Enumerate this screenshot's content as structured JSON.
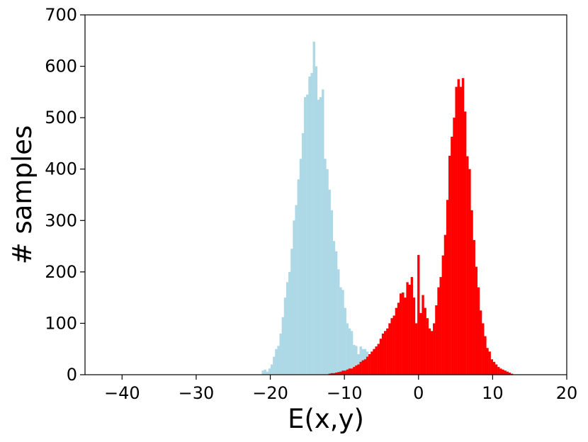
{
  "chart_data": {
    "type": "bar",
    "title": "",
    "xlabel": "E(x,y)",
    "ylabel": "# samples",
    "xlim": [
      -45,
      20
    ],
    "ylim": [
      0,
      700
    ],
    "x_ticks": [
      -40,
      -30,
      -20,
      -10,
      0,
      10,
      20
    ],
    "x_tick_labels": [
      "−40",
      "−30",
      "−20",
      "−10",
      "0",
      "10",
      "20"
    ],
    "y_ticks": [
      0,
      100,
      200,
      300,
      400,
      500,
      600,
      700
    ],
    "y_tick_labels": [
      "0",
      "100",
      "200",
      "300",
      "400",
      "500",
      "600",
      "700"
    ],
    "grid": false,
    "legend": "none",
    "bin_width": 0.32,
    "series": [
      {
        "color": "#add8e6",
        "x": [
          -21.0,
          -20.7,
          -20.4,
          -20.1,
          -19.8,
          -19.5,
          -19.2,
          -18.9,
          -18.6,
          -18.3,
          -18.0,
          -17.7,
          -17.4,
          -17.1,
          -16.8,
          -16.5,
          -16.2,
          -15.9,
          -15.6,
          -15.3,
          -15.0,
          -14.7,
          -14.4,
          -14.1,
          -13.8,
          -13.5,
          -13.2,
          -12.9,
          -12.6,
          -12.3,
          -12.0,
          -11.7,
          -11.4,
          -11.1,
          -10.8,
          -10.5,
          -10.2,
          -9.9,
          -9.6,
          -9.3,
          -9.0,
          -8.7,
          -8.4,
          -8.1,
          -7.8,
          -7.5,
          -7.2,
          -6.9,
          -6.6,
          -6.3,
          -6.0,
          -5.7,
          -5.4,
          -5.1,
          -4.8,
          -4.5,
          -4.2,
          -3.9,
          -3.6,
          -3.3,
          -3.0,
          -2.7
        ],
        "values": [
          8,
          10,
          6,
          12,
          20,
          35,
          50,
          56,
          80,
          112,
          150,
          180,
          200,
          245,
          300,
          330,
          380,
          420,
          470,
          540,
          545,
          580,
          587,
          648,
          600,
          535,
          540,
          555,
          420,
          400,
          360,
          320,
          260,
          240,
          205,
          170,
          165,
          130,
          100,
          90,
          85,
          58,
          56,
          40,
          55,
          50,
          50,
          45,
          40,
          30,
          25,
          20,
          15,
          12,
          10,
          8,
          6,
          5,
          4,
          3,
          2,
          2
        ]
      },
      {
        "color": "#ff0000",
        "x": [
          -12.0,
          -11.7,
          -11.4,
          -11.1,
          -10.8,
          -10.5,
          -10.2,
          -9.9,
          -9.6,
          -9.3,
          -9.0,
          -8.7,
          -8.4,
          -8.1,
          -7.8,
          -7.5,
          -7.2,
          -6.9,
          -6.6,
          -6.3,
          -6.0,
          -5.7,
          -5.4,
          -5.1,
          -4.8,
          -4.5,
          -4.2,
          -3.9,
          -3.6,
          -3.3,
          -3.0,
          -2.7,
          -2.4,
          -2.1,
          -1.8,
          -1.5,
          -1.2,
          -0.9,
          -0.6,
          -0.3,
          0.0,
          0.3,
          0.6,
          0.9,
          1.2,
          1.5,
          1.8,
          2.1,
          2.4,
          2.7,
          3.0,
          3.3,
          3.6,
          3.9,
          4.2,
          4.5,
          4.8,
          5.1,
          5.4,
          5.7,
          6.0,
          6.3,
          6.6,
          6.9,
          7.2,
          7.5,
          7.8,
          8.1,
          8.4,
          8.7,
          9.0,
          9.3,
          9.6,
          9.9,
          10.2,
          10.5,
          10.8,
          11.1,
          11.4,
          11.7,
          12.0,
          12.3,
          12.6
        ],
        "values": [
          2,
          3,
          3,
          4,
          5,
          6,
          8,
          8,
          10,
          12,
          12,
          15,
          18,
          20,
          25,
          28,
          30,
          35,
          40,
          45,
          50,
          55,
          60,
          70,
          80,
          85,
          90,
          100,
          110,
          115,
          130,
          140,
          158,
          160,
          150,
          180,
          175,
          190,
          150,
          100,
          233,
          120,
          155,
          130,
          110,
          90,
          85,
          100,
          135,
          170,
          190,
          232,
          272,
          340,
          426,
          463,
          500,
          560,
          575,
          560,
          577,
          512,
          425,
          400,
          320,
          262,
          210,
          170,
          125,
          100,
          75,
          52,
          45,
          30,
          25,
          20,
          15,
          12,
          10,
          8,
          6,
          4,
          2
        ]
      }
    ]
  }
}
